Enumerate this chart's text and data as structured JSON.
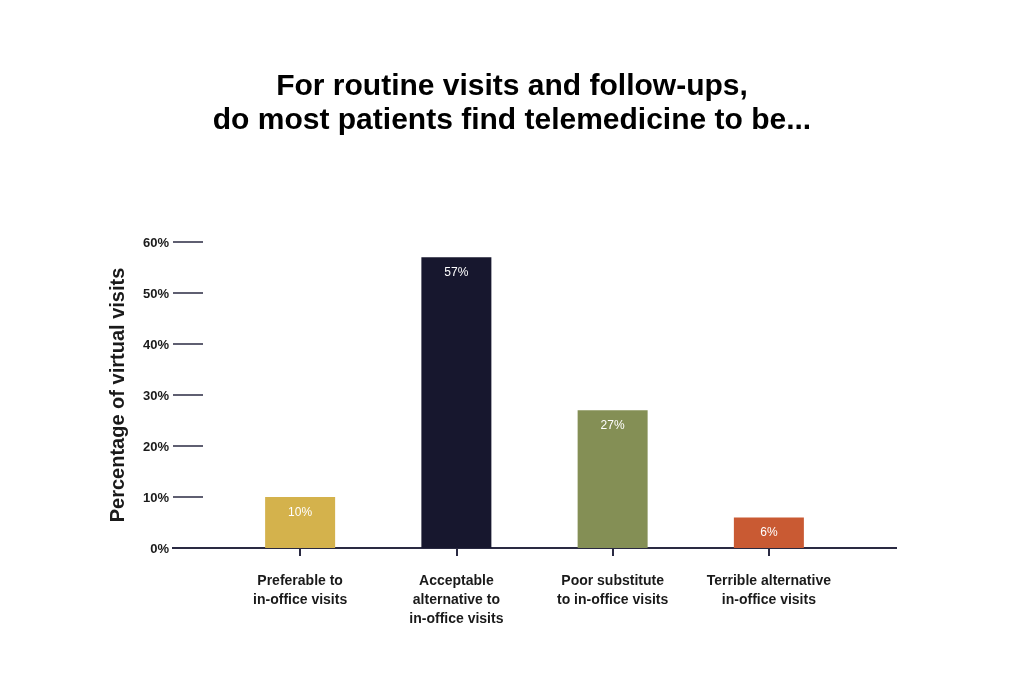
{
  "chart_data": {
    "type": "bar",
    "title": "For routine visits and follow-ups,\ndo most patients find telemedicine to be...",
    "ylabel": "Percentage of virtual visits",
    "categories": [
      "Preferable to\nin-office visits",
      "Acceptable\nalternative to\nin-office visits",
      "Poor substitute\nto in-office visits",
      "Terrible alternative\nin-office visits"
    ],
    "values": [
      10,
      57,
      27,
      6
    ],
    "value_labels": [
      "10%",
      "57%",
      "27%",
      "6%"
    ],
    "colors": [
      "#d4b24c",
      "#17172e",
      "#848f55",
      "#c95a33"
    ],
    "ylim": [
      0,
      60
    ],
    "yticks": [
      {
        "value": 0,
        "label": "0%"
      },
      {
        "value": 10,
        "label": "10%"
      },
      {
        "value": 20,
        "label": "20%"
      },
      {
        "value": 30,
        "label": "30%"
      },
      {
        "value": 40,
        "label": "40%"
      },
      {
        "value": 50,
        "label": "50%"
      },
      {
        "value": 60,
        "label": "60%"
      }
    ]
  }
}
